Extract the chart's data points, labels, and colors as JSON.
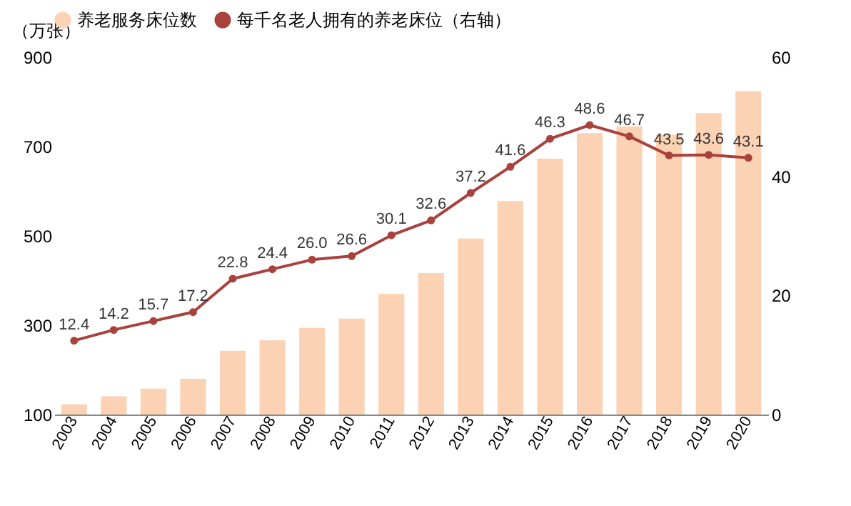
{
  "chart_data": {
    "type": "bar",
    "ylabel": "（万张）",
    "categories": [
      "2003",
      "2004",
      "2005",
      "2006",
      "2007",
      "2008",
      "2009",
      "2010",
      "2011",
      "2012",
      "2013",
      "2014",
      "2015",
      "2016",
      "2017",
      "2018",
      "2019",
      "2020"
    ],
    "series": [
      {
        "name": "养老服务床位数",
        "color": "#fbd2b4",
        "values": [
          123,
          141,
          158,
          180,
          243,
          266,
          294,
          315,
          370,
          417,
          494,
          578,
          673,
          730,
          745,
          727,
          775,
          824
        ]
      },
      {
        "name": "每千名老人拥有的养老床位（右轴）",
        "color": "#a9413c",
        "type": "line",
        "axis": "y2",
        "marker": "circle",
        "values": [
          12.4,
          14.2,
          15.7,
          17.2,
          22.8,
          24.4,
          26.0,
          26.6,
          30.1,
          32.6,
          37.2,
          41.6,
          46.3,
          48.6,
          46.7,
          43.5,
          43.6,
          43.1
        ],
        "value_labels": [
          "12.4",
          "14.2",
          "15.7",
          "17.2",
          "22.8",
          "24.4",
          "26.0",
          "26.6",
          "30.1",
          "32.6",
          "37.2",
          "41.6",
          "46.3",
          "48.6",
          "46.7",
          "43.5",
          "43.6",
          "43.1"
        ]
      }
    ],
    "ylim": [
      100,
      900
    ],
    "yticks": [
      100,
      300,
      500,
      700,
      900
    ],
    "y2lim": [
      0,
      60
    ],
    "y2ticks": [
      0,
      20,
      40,
      60
    ],
    "legend": "top",
    "grid": false
  }
}
